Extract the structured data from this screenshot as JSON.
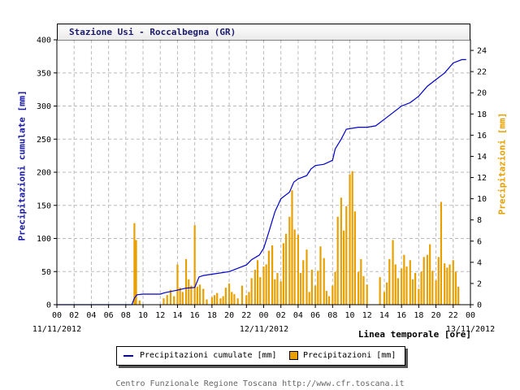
{
  "title": "Stazione Usi - Roccalbegna (GR)",
  "left_axis_label": "Precipitazioni cumulate [mm]",
  "right_axis_label": "Precipitazioni [mm]",
  "x_axis_label": "Linea temporale [ore]",
  "date_labels": [
    "11/11/2012",
    "12/11/2012",
    "13/11/2012"
  ],
  "legend": {
    "cumulative": "Precipitazioni cumulate [mm]",
    "hourly": "Precipitazioni [mm]"
  },
  "footer": "Centro Funzionale Regione Toscana http://www.cfr.toscana.it",
  "colors": {
    "cumulative": "#0000c8",
    "hourly": "#e8a000",
    "left_axis": "#1a1aa8",
    "right_axis": "#e8a000"
  },
  "chart_data": {
    "type": "line",
    "x_unit": "hours since 11/11/2012 00:00",
    "x_ticks": [
      "00",
      "02",
      "04",
      "06",
      "08",
      "10",
      "12",
      "14",
      "16",
      "18",
      "20",
      "22",
      "00",
      "02",
      "04",
      "06",
      "08",
      "10",
      "12",
      "14",
      "16",
      "18",
      "20",
      "22",
      "00"
    ],
    "xlim": [
      0,
      48
    ],
    "ylim_left": [
      0,
      400
    ],
    "yticks_left": [
      0,
      50,
      100,
      150,
      200,
      250,
      300,
      350,
      400
    ],
    "ylim_right": [
      0,
      25
    ],
    "yticks_right": [
      0,
      2,
      4,
      6,
      8,
      10,
      12,
      14,
      16,
      18,
      20,
      22,
      24
    ],
    "grid": true,
    "legend_position": "bottom",
    "series": [
      {
        "name": "Precipitazioni cumulate [mm]",
        "axis": "left",
        "points": [
          [
            0,
            0
          ],
          [
            8.7,
            0
          ],
          [
            9,
            10
          ],
          [
            9.3,
            15
          ],
          [
            10,
            16
          ],
          [
            12,
            16
          ],
          [
            12.5,
            18
          ],
          [
            14,
            22
          ],
          [
            15,
            25
          ],
          [
            16,
            26
          ],
          [
            16.5,
            42
          ],
          [
            17,
            44
          ],
          [
            18,
            46
          ],
          [
            20,
            50
          ],
          [
            21,
            55
          ],
          [
            22,
            60
          ],
          [
            22.6,
            68
          ],
          [
            23.5,
            75
          ],
          [
            24,
            85
          ],
          [
            24.6,
            110
          ],
          [
            25.3,
            140
          ],
          [
            26,
            160
          ],
          [
            27,
            170
          ],
          [
            27.5,
            185
          ],
          [
            28,
            190
          ],
          [
            29,
            195
          ],
          [
            29.5,
            205
          ],
          [
            30,
            210
          ],
          [
            31,
            212
          ],
          [
            32,
            218
          ],
          [
            32.3,
            235
          ],
          [
            33,
            250
          ],
          [
            33.6,
            265
          ],
          [
            35,
            268
          ],
          [
            36,
            268
          ],
          [
            37,
            270
          ],
          [
            38,
            280
          ],
          [
            39,
            290
          ],
          [
            40,
            300
          ],
          [
            41,
            305
          ],
          [
            42,
            315
          ],
          [
            43,
            330
          ],
          [
            44,
            340
          ],
          [
            45,
            350
          ],
          [
            46,
            365
          ],
          [
            47,
            370
          ],
          [
            47.5,
            370
          ]
        ]
      },
      {
        "name": "Precipitazioni [mm]",
        "axis": "right",
        "kind": "bar",
        "points": [
          [
            9.0,
            7.7
          ],
          [
            9.2,
            6.1
          ],
          [
            9.6,
            0.4
          ],
          [
            12.4,
            0.6
          ],
          [
            12.8,
            0.9
          ],
          [
            13.2,
            1.4
          ],
          [
            13.6,
            0.8
          ],
          [
            14.0,
            3.8
          ],
          [
            14.3,
            1.6
          ],
          [
            14.6,
            1.2
          ],
          [
            15.0,
            4.3
          ],
          [
            15.3,
            2.4
          ],
          [
            15.6,
            1.8
          ],
          [
            16.0,
            7.5
          ],
          [
            16.3,
            1.7
          ],
          [
            16.6,
            1.9
          ],
          [
            17.0,
            1.5
          ],
          [
            17.4,
            0.5
          ],
          [
            18.0,
            0.7
          ],
          [
            18.3,
            0.9
          ],
          [
            18.6,
            1.1
          ],
          [
            19.0,
            0.6
          ],
          [
            19.3,
            0.8
          ],
          [
            19.6,
            1.6
          ],
          [
            20.0,
            2.0
          ],
          [
            20.3,
            1.2
          ],
          [
            20.6,
            1.0
          ],
          [
            21.0,
            0.6
          ],
          [
            21.5,
            1.8
          ],
          [
            22.0,
            0.9
          ],
          [
            22.3,
            1.2
          ],
          [
            22.6,
            2.5
          ],
          [
            23.0,
            3.3
          ],
          [
            23.3,
            4.2
          ],
          [
            23.6,
            2.6
          ],
          [
            24.0,
            3.6
          ],
          [
            24.3,
            3.8
          ],
          [
            24.6,
            5.1
          ],
          [
            25.0,
            5.6
          ],
          [
            25.3,
            2.4
          ],
          [
            25.6,
            3.0
          ],
          [
            26.0,
            2.2
          ],
          [
            26.3,
            5.8
          ],
          [
            26.6,
            6.7
          ],
          [
            27.0,
            8.3
          ],
          [
            27.3,
            10.8
          ],
          [
            27.6,
            7.1
          ],
          [
            28.0,
            6.6
          ],
          [
            28.3,
            3.0
          ],
          [
            28.6,
            4.2
          ],
          [
            29.0,
            5.2
          ],
          [
            29.3,
            1.2
          ],
          [
            29.6,
            3.3
          ],
          [
            30.0,
            1.8
          ],
          [
            30.3,
            3.2
          ],
          [
            30.6,
            5.5
          ],
          [
            31.0,
            4.4
          ],
          [
            31.3,
            1.3
          ],
          [
            31.6,
            0.8
          ],
          [
            32.0,
            1.8
          ],
          [
            32.3,
            3.1
          ],
          [
            32.6,
            8.3
          ],
          [
            33.0,
            10.1
          ],
          [
            33.3,
            7.0
          ],
          [
            33.6,
            9.3
          ],
          [
            34.0,
            12.3
          ],
          [
            34.3,
            12.6
          ],
          [
            34.6,
            8.8
          ],
          [
            35.0,
            3.1
          ],
          [
            35.3,
            4.3
          ],
          [
            35.6,
            2.7
          ],
          [
            36.0,
            1.9
          ],
          [
            37.5,
            2.6
          ],
          [
            38.0,
            1.2
          ],
          [
            38.3,
            2.1
          ],
          [
            38.6,
            4.3
          ],
          [
            39.0,
            6.1
          ],
          [
            39.3,
            3.8
          ],
          [
            39.6,
            2.5
          ],
          [
            40.0,
            3.4
          ],
          [
            40.3,
            4.7
          ],
          [
            40.6,
            3.6
          ],
          [
            41.0,
            4.2
          ],
          [
            41.3,
            2.4
          ],
          [
            41.6,
            3.0
          ],
          [
            42.0,
            1.5
          ],
          [
            42.3,
            3.1
          ],
          [
            42.6,
            4.5
          ],
          [
            43.0,
            4.7
          ],
          [
            43.3,
            5.7
          ],
          [
            43.6,
            3.2
          ],
          [
            44.0,
            2.3
          ],
          [
            44.3,
            4.5
          ],
          [
            44.6,
            9.7
          ],
          [
            45.0,
            3.9
          ],
          [
            45.3,
            3.5
          ],
          [
            45.6,
            3.8
          ],
          [
            46.0,
            4.2
          ],
          [
            46.3,
            3.1
          ],
          [
            46.6,
            1.7
          ]
        ]
      }
    ]
  }
}
